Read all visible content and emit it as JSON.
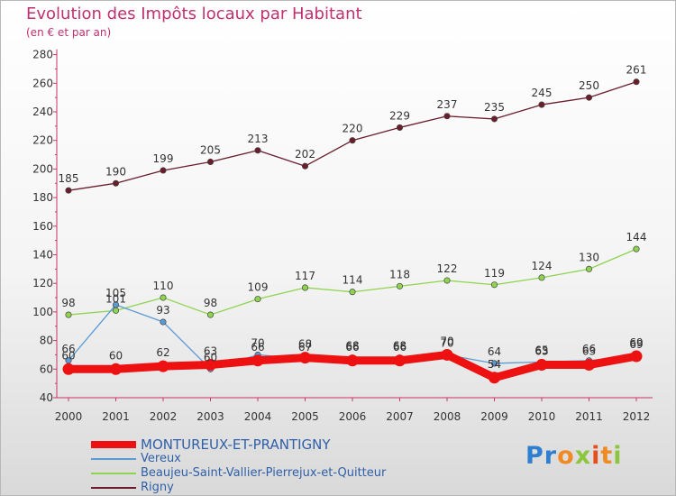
{
  "title": "Evolution des Impôts locaux par Habitant",
  "subtitle": "(en € et par an)",
  "logo": "Proxiti",
  "chart_data": {
    "type": "line",
    "x": [
      "2000",
      "2001",
      "2002",
      "2003",
      "2004",
      "2005",
      "2006",
      "2007",
      "2008",
      "2009",
      "2010",
      "2011",
      "2012"
    ],
    "ylim": [
      40,
      280
    ],
    "yticks": [
      "40",
      "60",
      "80",
      "100",
      "120",
      "140",
      "160",
      "180",
      "200",
      "220",
      "240",
      "260",
      "280"
    ],
    "grid": false,
    "legend_position": "bottom-left",
    "series": [
      {
        "name": "MONTUREUX-ET-PRANTIGNY",
        "color": "#ee1111",
        "values": [
          60,
          60,
          62,
          63,
          66,
          68,
          66,
          66,
          70,
          54,
          63,
          63,
          69
        ],
        "labels": [
          "60",
          "60",
          "62",
          "63",
          "66",
          "68",
          "66",
          "66",
          "70",
          "54",
          "63",
          "63",
          "69"
        ]
      },
      {
        "name": "Vereux",
        "color": "#5b9bd5",
        "values": [
          66,
          105,
          93,
          60,
          70,
          67,
          68,
          68,
          70,
          64,
          65,
          66,
          69
        ],
        "labels": [
          "66",
          "105",
          "93",
          "60",
          "70",
          "67",
          "68",
          "68",
          "70",
          "64",
          "65",
          "66",
          "69"
        ]
      },
      {
        "name": "Beaujeu-Saint-Vallier-Pierrejux-et-Quitteur",
        "color": "#8ed44f",
        "values": [
          98,
          101,
          110,
          98,
          109,
          117,
          114,
          118,
          122,
          119,
          124,
          130,
          144
        ],
        "labels": [
          "98",
          "101",
          "110",
          "98",
          "109",
          "117",
          "114",
          "118",
          "122",
          "119",
          "124",
          "130",
          "144"
        ]
      },
      {
        "name": "Rigny",
        "color": "#6b1e2a",
        "values": [
          185,
          190,
          199,
          205,
          213,
          202,
          220,
          229,
          237,
          235,
          245,
          250,
          261
        ],
        "labels": [
          "185",
          "190",
          "199",
          "205",
          "213",
          "202",
          "220",
          "229",
          "237",
          "235",
          "245",
          "250",
          "261"
        ]
      }
    ]
  }
}
